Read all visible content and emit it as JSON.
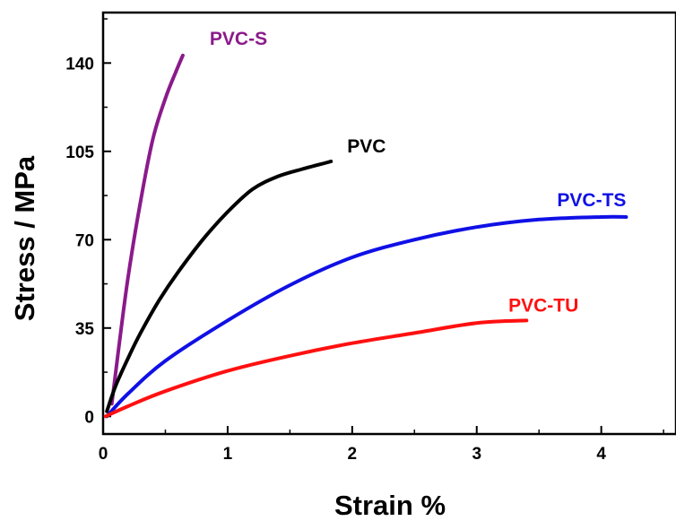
{
  "chart_data": {
    "type": "line",
    "title": "",
    "xlabel": "Strain %",
    "ylabel": "Stress / MPa",
    "xlim": [
      0,
      4.6
    ],
    "ylim": [
      -7,
      160
    ],
    "xticks": [
      0,
      1,
      2,
      3,
      4
    ],
    "yticks": [
      0,
      35,
      70,
      105,
      140
    ],
    "grid": false,
    "series": [
      {
        "name": "PVC-S",
        "color": "#8B1A8B",
        "x": [
          0.07,
          0.12,
          0.2,
          0.3,
          0.4,
          0.5,
          0.58,
          0.64
        ],
        "y": [
          5,
          25,
          55,
          85,
          110,
          126,
          136,
          143
        ]
      },
      {
        "name": "PVC",
        "color": "#000000",
        "x": [
          0.03,
          0.1,
          0.2,
          0.3,
          0.45,
          0.6,
          0.8,
          1.0,
          1.2,
          1.4,
          1.6,
          1.83
        ],
        "y": [
          2,
          12,
          23,
          33,
          46,
          57,
          70,
          81,
          90,
          95,
          98,
          101
        ]
      },
      {
        "name": "PVC-TS",
        "color": "#1010E6",
        "x": [
          0.03,
          0.2,
          0.5,
          1.0,
          1.5,
          2.0,
          2.5,
          3.0,
          3.5,
          4.0,
          4.2
        ],
        "y": [
          0,
          9,
          22,
          38,
          52,
          63,
          70,
          75,
          78,
          79,
          79
        ]
      },
      {
        "name": "PVC-TU",
        "color": "#FF1010",
        "x": [
          0.02,
          0.2,
          0.5,
          1.0,
          1.5,
          2.0,
          2.5,
          3.0,
          3.4
        ],
        "y": [
          0,
          4,
          10,
          18,
          24,
          29,
          33,
          37,
          38
        ]
      }
    ]
  }
}
